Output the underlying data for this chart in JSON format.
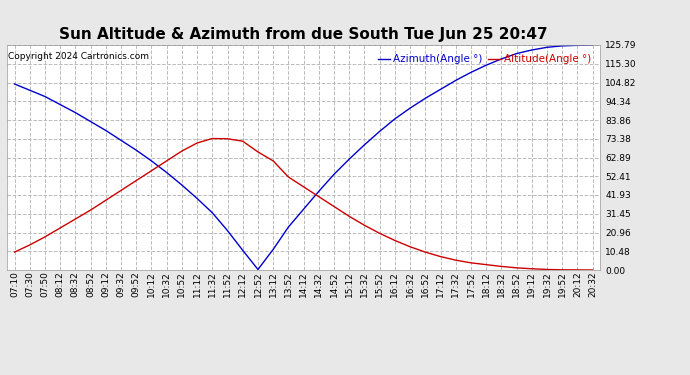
{
  "title": "Sun Altitude & Azimuth from due South Tue Jun 25 20:47",
  "copyright": "Copyright 2024 Cartronics.com",
  "legend_azimuth": "Azimuth(Angle °)",
  "legend_altitude": "Altitude(Angle °)",
  "azimuth_color": "#0000cc",
  "altitude_color": "#cc0000",
  "background_color": "#e8e8e8",
  "plot_bg_color": "#ffffff",
  "ymin": 0.0,
  "ymax": 125.79,
  "yticks": [
    0.0,
    10.48,
    20.96,
    31.45,
    41.93,
    52.41,
    62.89,
    73.38,
    83.86,
    94.34,
    104.82,
    115.3,
    125.79
  ],
  "time_labels": [
    "07:10",
    "07:30",
    "07:50",
    "08:12",
    "08:32",
    "08:52",
    "09:12",
    "09:32",
    "09:52",
    "10:12",
    "10:32",
    "10:52",
    "11:12",
    "11:32",
    "11:52",
    "12:12",
    "12:52",
    "13:12",
    "13:52",
    "14:12",
    "14:32",
    "14:52",
    "15:12",
    "15:32",
    "15:52",
    "16:12",
    "16:32",
    "16:52",
    "17:12",
    "17:32",
    "17:52",
    "18:12",
    "18:32",
    "18:52",
    "19:12",
    "19:32",
    "19:52",
    "20:12",
    "20:32"
  ],
  "azimuth_values": [
    104.0,
    100.5,
    97.0,
    92.5,
    88.0,
    83.0,
    78.0,
    72.5,
    67.0,
    61.0,
    54.5,
    47.5,
    40.0,
    32.0,
    22.0,
    11.0,
    0.3,
    11.5,
    24.0,
    34.0,
    44.0,
    53.5,
    62.0,
    70.0,
    77.5,
    84.5,
    90.5,
    96.0,
    101.0,
    106.0,
    110.5,
    114.5,
    118.0,
    121.0,
    123.0,
    124.5,
    125.3,
    125.6,
    125.79
  ],
  "altitude_values": [
    10.0,
    14.0,
    18.5,
    23.5,
    28.5,
    33.5,
    39.0,
    44.5,
    50.0,
    55.5,
    61.0,
    66.5,
    71.0,
    73.5,
    73.38,
    72.0,
    66.0,
    61.0,
    52.0,
    46.5,
    41.0,
    35.5,
    30.0,
    25.0,
    20.5,
    16.5,
    13.0,
    10.0,
    7.5,
    5.5,
    4.0,
    3.0,
    2.0,
    1.2,
    0.7,
    0.3,
    0.1,
    0.05,
    0.0
  ],
  "grid_color": "#bbbbbb",
  "grid_linestyle": "--",
  "title_fontsize": 11,
  "legend_fontsize": 7.5,
  "tick_fontsize": 6.5,
  "copyright_fontsize": 6.5
}
